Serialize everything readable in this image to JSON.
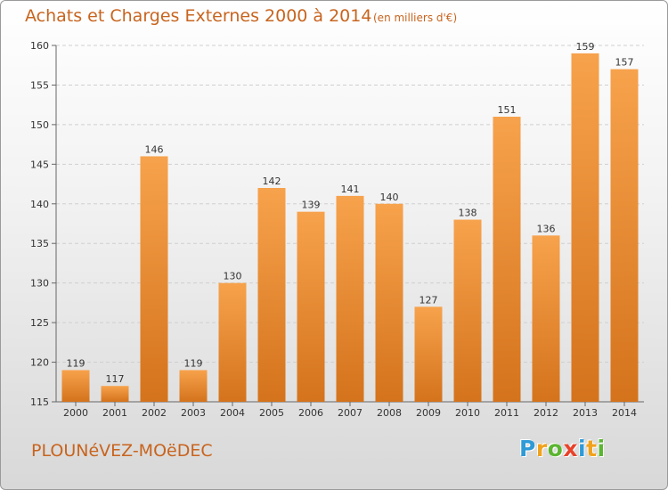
{
  "header": {
    "title": "Achats et Charges Externes 2000 à 2014",
    "subtitle": "(en milliers d'€)"
  },
  "footer": {
    "place": "PLOUNéVEZ-MOëDEC",
    "logo_letters": [
      "P",
      "r",
      "o",
      "x",
      "i",
      "t",
      "i"
    ],
    "logo_colors": [
      "#2e9ad6",
      "#f0a21e",
      "#5cb531",
      "#e8422a",
      "#2e9ad6",
      "#f0a21e",
      "#5cb531"
    ]
  },
  "colors": {
    "bar": "#f29a3e",
    "bar_dark": "#d67520",
    "accent_text": "#c8641e"
  },
  "chart_data": {
    "type": "bar",
    "title": "Achats et Charges Externes 2000 à 2014",
    "subtitle": "(en milliers d'€)",
    "categories": [
      "2000",
      "2001",
      "2002",
      "2003",
      "2004",
      "2005",
      "2006",
      "2007",
      "2008",
      "2009",
      "2010",
      "2011",
      "2012",
      "2013",
      "2014"
    ],
    "values": [
      119,
      117,
      146,
      119,
      130,
      142,
      139,
      141,
      140,
      127,
      138,
      151,
      136,
      159,
      157
    ],
    "ylim": [
      115,
      160
    ],
    "yticks": [
      115,
      120,
      125,
      130,
      135,
      140,
      145,
      150,
      155,
      160
    ],
    "grid": true,
    "xlabel": "",
    "ylabel": ""
  }
}
